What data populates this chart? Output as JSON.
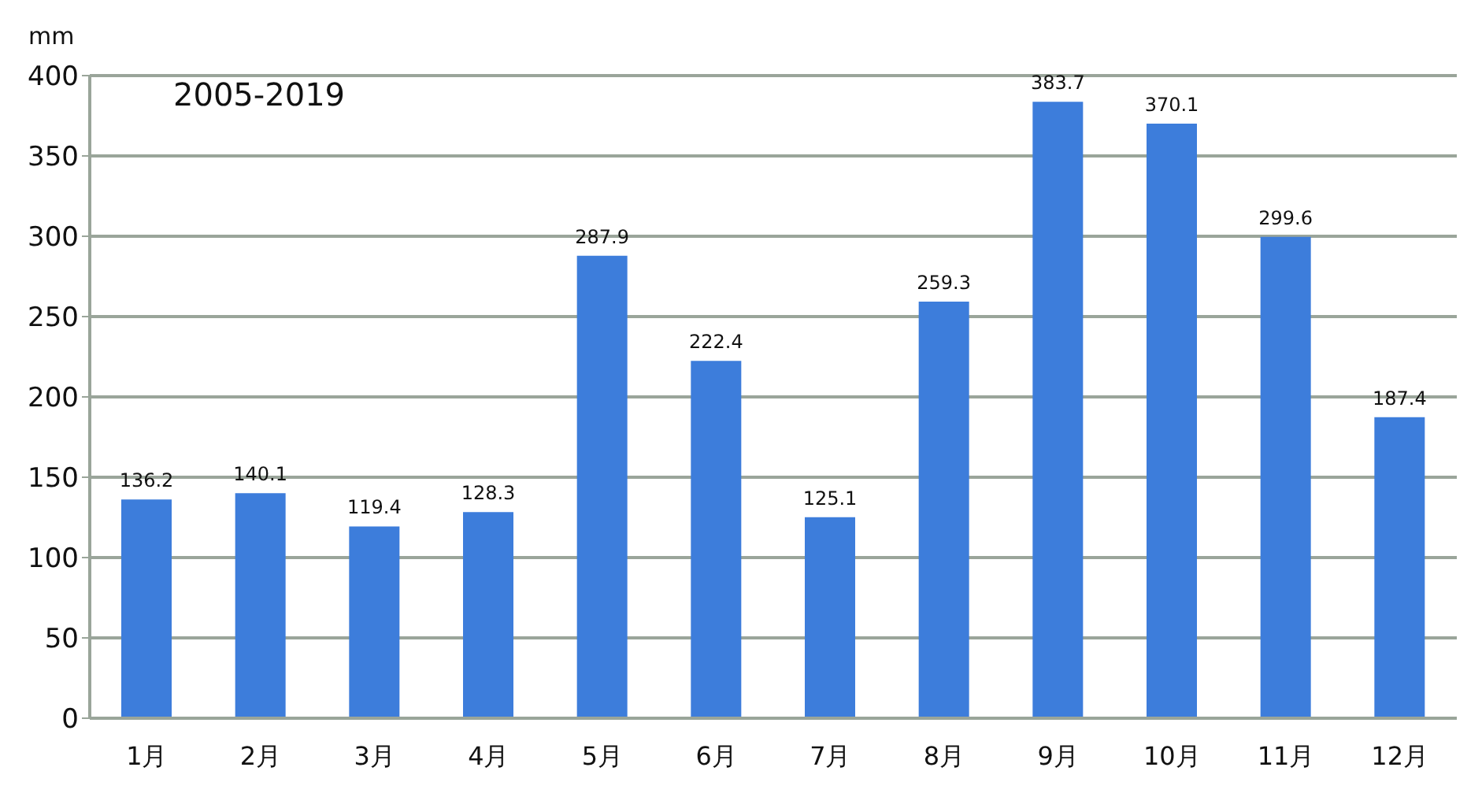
{
  "chart_data": {
    "type": "bar",
    "annotations": [
      "2005-2019"
    ],
    "ylabel": "mm",
    "categories": [
      "1月",
      "2月",
      "3月",
      "4月",
      "5月",
      "6月",
      "7月",
      "8月",
      "9月",
      "10月",
      "11月",
      "12月"
    ],
    "values": [
      136.2,
      140.1,
      119.4,
      128.3,
      287.9,
      222.4,
      125.1,
      259.3,
      383.7,
      370.1,
      299.6,
      187.4
    ],
    "color": "#3d7ddb",
    "ylim": [
      0,
      400
    ],
    "yticks": [
      0,
      50,
      100,
      150,
      200,
      250,
      300,
      350,
      400
    ],
    "grid": "y",
    "data_labels": true
  }
}
